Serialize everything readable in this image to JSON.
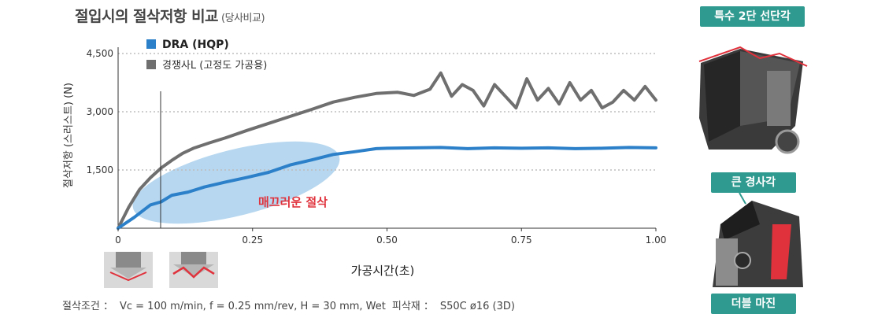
{
  "title": {
    "main": "절입시의 절삭저항 비교",
    "sub": "(당사비교)"
  },
  "colors": {
    "dra": "#2b80c9",
    "competitor": "#6f6f6f",
    "ellipse": "#a9d0ec",
    "accent": "#e0323c",
    "tag": "#2f9a8f",
    "grid": "#bdbdbd"
  },
  "chart_data": {
    "type": "line",
    "xlabel": "가공시간(초)",
    "ylabel": "절삭저항 (스러스트) (N)",
    "xlim": [
      0,
      1.0
    ],
    "ylim": [
      0,
      4500
    ],
    "xticks": [
      "0",
      "0.25",
      "0.50",
      "0.75",
      "1.00"
    ],
    "xtick_values": [
      0,
      0.25,
      0.5,
      0.75,
      1.0
    ],
    "yticks": [
      "1,500",
      "3,000",
      "4,500"
    ],
    "ytick_values": [
      1500,
      3000,
      4500
    ],
    "grid": "horizontal dotted",
    "legend_position": "top-left",
    "annotation": "매끄러운 절삭",
    "series": [
      {
        "name": "DRA (HQP)",
        "color": "#2b80c9",
        "x": [
          0,
          0.03,
          0.06,
          0.08,
          0.1,
          0.13,
          0.16,
          0.2,
          0.24,
          0.28,
          0.32,
          0.36,
          0.4,
          0.44,
          0.48,
          0.5,
          0.55,
          0.6,
          0.65,
          0.7,
          0.75,
          0.8,
          0.85,
          0.9,
          0.95,
          1.0
        ],
        "y": [
          0,
          280,
          600,
          680,
          850,
          930,
          1060,
          1190,
          1310,
          1440,
          1630,
          1760,
          1900,
          1970,
          2050,
          2060,
          2070,
          2080,
          2050,
          2070,
          2060,
          2070,
          2050,
          2060,
          2080,
          2070
        ]
      },
      {
        "name": "경쟁사L (고정도 가공용)",
        "color": "#6f6f6f",
        "x": [
          0,
          0.02,
          0.04,
          0.06,
          0.08,
          0.1,
          0.12,
          0.14,
          0.17,
          0.2,
          0.24,
          0.28,
          0.32,
          0.36,
          0.4,
          0.44,
          0.48,
          0.52,
          0.55,
          0.58,
          0.6,
          0.62,
          0.64,
          0.66,
          0.68,
          0.7,
          0.72,
          0.74,
          0.76,
          0.78,
          0.8,
          0.82,
          0.84,
          0.86,
          0.88,
          0.9,
          0.92,
          0.94,
          0.96,
          0.98,
          1.0
        ],
        "y": [
          0,
          550,
          1000,
          1300,
          1550,
          1750,
          1930,
          2060,
          2200,
          2330,
          2520,
          2700,
          2880,
          3060,
          3250,
          3370,
          3470,
          3500,
          3420,
          3580,
          4000,
          3400,
          3700,
          3550,
          3150,
          3700,
          3400,
          3100,
          3850,
          3300,
          3600,
          3200,
          3750,
          3300,
          3550,
          3100,
          3250,
          3550,
          3300,
          3650,
          3300
        ]
      }
    ]
  },
  "tool_labels": {
    "special_edge": "특수 2단 선단각",
    "large_rake": "큰 경사각",
    "double_margin": "더블 마진"
  },
  "conditions": {
    "label": "절삭조건 ：",
    "values": "Vc = 100 m/min, f = 0.25 mm/rev, H = 30 mm, Wet",
    "material_label": "피삭재 ：",
    "material": "S50C  ø16 (3D)"
  }
}
